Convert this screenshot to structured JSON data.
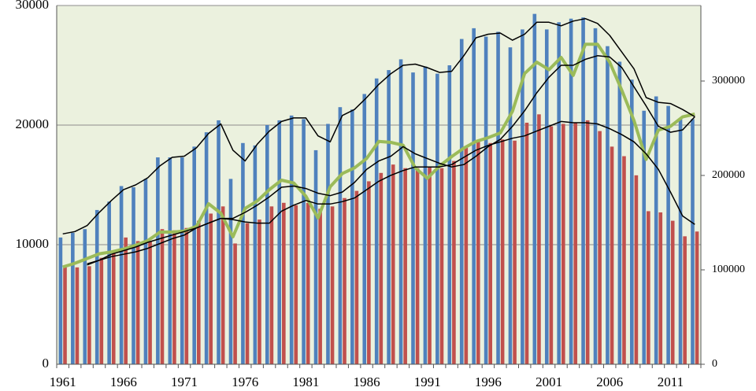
{
  "chart_data": {
    "type": "bar",
    "categories": [
      "1961",
      null,
      null,
      null,
      null,
      "1966",
      null,
      null,
      null,
      null,
      "1971",
      null,
      null,
      null,
      null,
      "1976",
      null,
      null,
      null,
      null,
      "1981",
      null,
      null,
      null,
      null,
      "1986",
      null,
      null,
      null,
      null,
      "1991",
      null,
      null,
      null,
      null,
      "1996",
      null,
      null,
      null,
      null,
      "2001",
      null,
      null,
      null,
      null,
      "2006",
      null,
      null,
      null,
      null,
      "2011",
      null,
      null
    ],
    "ylim": [
      0,
      30000
    ],
    "yticks": [
      0,
      10000,
      20000,
      30000
    ],
    "y2lim": [
      0,
      380000
    ],
    "y2ticks": [
      0,
      100000,
      200000,
      300000
    ],
    "grid": true,
    "background": "#ebf1de",
    "series": [
      {
        "type": "bar",
        "color": "#4f81bd",
        "values": [
          10600,
          11000,
          11300,
          12900,
          13600,
          14900,
          14800,
          15500,
          17300,
          17300,
          17300,
          18200,
          19400,
          20400,
          15500,
          18500,
          18300,
          20000,
          20400,
          20800,
          20500,
          17900,
          20100,
          21500,
          21300,
          22600,
          23900,
          24600,
          25500,
          24400,
          24900,
          24300,
          25000,
          27200,
          28100,
          27400,
          27800,
          26500,
          28000,
          29300,
          28000,
          28600,
          28900,
          29000,
          28100,
          26600,
          25300,
          23800,
          21200,
          22400,
          21600,
          20500,
          20500
        ]
      },
      {
        "type": "bar",
        "color": "#c0504d",
        "values": [
          8100,
          8100,
          8200,
          8900,
          9400,
          10600,
          10300,
          10300,
          11300,
          11200,
          11400,
          12000,
          12600,
          13200,
          10100,
          11800,
          12100,
          13200,
          13500,
          13300,
          13500,
          13000,
          13200,
          13900,
          14500,
          15300,
          16000,
          16700,
          16400,
          16400,
          16500,
          16400,
          17000,
          18100,
          18600,
          18500,
          18800,
          18700,
          20200,
          20900,
          19900,
          20100,
          20200,
          20400,
          19500,
          18200,
          17400,
          15800,
          12800,
          12700,
          12000,
          10700,
          11100
        ]
      },
      {
        "type": "line",
        "axis": "y2",
        "color": "#9bbb59",
        "width": 4,
        "values": [
          103000,
          107000,
          112000,
          117000,
          119000,
          122000,
          126000,
          131000,
          140000,
          140000,
          141000,
          146000,
          170000,
          160000,
          135000,
          165000,
          173000,
          185000,
          195000,
          192000,
          178000,
          155000,
          188000,
          202000,
          208000,
          218000,
          236000,
          235000,
          232000,
          208000,
          197000,
          210000,
          220000,
          229000,
          236000,
          240000,
          245000,
          268000,
          308000,
          320000,
          312000,
          325000,
          306000,
          339000,
          339000,
          320000,
          290000,
          258000,
          217000,
          248000,
          252000,
          262000,
          265000
        ]
      },
      {
        "type": "line",
        "color": "#000000",
        "width": 1.5,
        "values": [
          10900,
          11100,
          11600,
          12700,
          13700,
          14600,
          15000,
          15600,
          16600,
          17300,
          17400,
          18100,
          19300,
          20100,
          17900,
          17000,
          18400,
          19500,
          20300,
          20600,
          20600,
          19100,
          18600,
          20800,
          21300,
          22300,
          23400,
          24300,
          25000,
          25100,
          24800,
          24400,
          24500,
          25800,
          27300,
          27600,
          27700,
          27100,
          27600,
          28600,
          28600,
          28300,
          28700,
          28900,
          28500,
          27500,
          26100,
          24700,
          22300,
          21900,
          21800,
          21300,
          20700
        ]
      },
      {
        "type": "line",
        "color": "#000000",
        "width": 1.5,
        "values": [
          null,
          null,
          8300,
          8700,
          9200,
          9500,
          9800,
          10200,
          10500,
          10800,
          11100,
          11400,
          11800,
          12200,
          12200,
          12700,
          13300,
          14000,
          14800,
          14900,
          14700,
          14300,
          14100,
          14400,
          15200,
          16300,
          17000,
          17400,
          18200,
          17600,
          17200,
          16800,
          16500,
          16700,
          17400,
          18200,
          18800,
          19900,
          21200,
          22700,
          24000,
          25000,
          25000,
          25500,
          25800,
          25700,
          24800,
          23200,
          21600,
          19900,
          19400,
          19600,
          20700
        ]
      },
      {
        "type": "line",
        "color": "#000000",
        "width": 1.5,
        "values": [
          null,
          null,
          8400,
          8700,
          9000,
          9200,
          9400,
          9700,
          10100,
          10500,
          10800,
          11400,
          11800,
          12200,
          12100,
          11900,
          11800,
          11800,
          12800,
          13300,
          13700,
          13400,
          13400,
          13600,
          13900,
          14600,
          15300,
          15800,
          16200,
          16500,
          16500,
          16500,
          16700,
          17300,
          17900,
          18300,
          18600,
          18900,
          19100,
          19500,
          19900,
          20300,
          20200,
          20200,
          20100,
          19700,
          19200,
          18600,
          17600,
          16300,
          14400,
          12400,
          11700
        ]
      }
    ]
  }
}
